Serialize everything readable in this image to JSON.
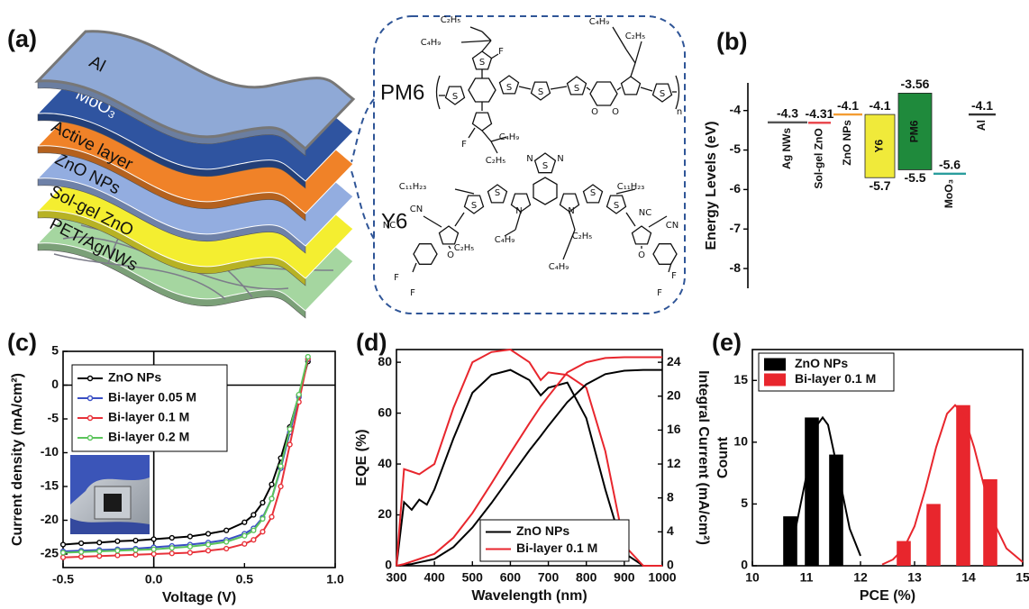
{
  "diagram": {
    "label": "(a)",
    "layers": [
      {
        "name": "Al",
        "color": "#8fa9d6"
      },
      {
        "name": "MoO₃",
        "color": "#2f54a0"
      },
      {
        "name": "Active layer",
        "color": "#f08228"
      },
      {
        "name": "ZnO NPs",
        "color": "#93ade0"
      },
      {
        "name": "Sol-gel ZnO",
        "color": "#f4ee30"
      },
      {
        "name": "PET/AgNWs",
        "color": "#a5d6a0"
      }
    ],
    "molecules": [
      {
        "name": "PM6",
        "atoms": [
          "C₂H₅",
          "C₄H₉",
          "F",
          "S",
          "S",
          "S",
          "S",
          "C₄H₉",
          "C₂H₅",
          "O",
          "O",
          "S",
          "S",
          "n",
          "F",
          "C₄H₉",
          "C₂H₅"
        ]
      },
      {
        "name": "Y6",
        "atoms": [
          "S",
          "N",
          "N",
          "C₁₁H₂₃",
          "C₁₁H₂₃",
          "NC",
          "CN",
          "NC",
          "CN",
          "N",
          "N",
          "O",
          "O",
          "F",
          "F",
          "F",
          "F",
          "C₂H₅",
          "C₄H₉",
          "C₂H₅",
          "C₄H₉",
          "S",
          "S",
          "S",
          "S"
        ]
      }
    ]
  },
  "chart_data": [
    {
      "type": "energy-level",
      "label": "(b)",
      "ylabel": "Energy Levels (eV)",
      "ylim": [
        -8.5,
        -3.3
      ],
      "yticks": [
        -8,
        -7,
        -6,
        -5,
        -4
      ],
      "series": [
        {
          "name": "Ag NWs",
          "color": "#555555",
          "values": [
            -4.3
          ]
        },
        {
          "name": "Sol-gel ZnO",
          "color": "#e8434a",
          "values": [
            -4.31
          ]
        },
        {
          "name": "ZnO NPs",
          "color": "#f39c33",
          "values": [
            -4.1
          ]
        },
        {
          "name": "Y6",
          "color": "#f0ea3a",
          "values": [
            -4.1,
            -5.7
          ]
        },
        {
          "name": "PM6",
          "color": "#1f8a3c",
          "values": [
            -3.56,
            -5.5
          ]
        },
        {
          "name": "MoO₃",
          "color": "#2a9d9d",
          "values": [
            -5.6
          ]
        },
        {
          "name": "Al",
          "color": "#333333",
          "values": [
            -4.1
          ]
        }
      ]
    },
    {
      "type": "line",
      "label": "(c)",
      "xlabel": "Voltage (V)",
      "ylabel": "Current density (mA/cm²)",
      "markers": true,
      "xlim": [
        -0.5,
        1.0
      ],
      "xticks": [
        -0.5,
        {
          "value": 0,
          "label": "0.0"
        },
        0.5,
        {
          "value": 1,
          "label": "1.0"
        }
      ],
      "ylim": [
        -27,
        5
      ],
      "yticks": [
        -25,
        -20,
        -15,
        -10,
        -5,
        0,
        5
      ],
      "x": [
        -0.5,
        -0.4,
        -0.3,
        -0.2,
        -0.1,
        0,
        0.1,
        0.2,
        0.3,
        0.4,
        0.5,
        0.55,
        0.6,
        0.65,
        0.7,
        0.75,
        0.8,
        0.85
      ],
      "series": [
        {
          "name": "ZnO NPs",
          "color": "#000000",
          "values": [
            -23.6,
            -23.4,
            -23.3,
            -23.1,
            -23.0,
            -22.8,
            -22.6,
            -22.4,
            -22.0,
            -21.5,
            -20.3,
            -19.2,
            -17.4,
            -14.7,
            -10.8,
            -6.2,
            -1.5,
            3.5
          ]
        },
        {
          "name": "Bi-layer 0.05 M",
          "color": "#3a4fc4",
          "values": [
            -24.6,
            -24.5,
            -24.4,
            -24.3,
            -24.2,
            -24.0,
            -23.8,
            -23.6,
            -23.3,
            -22.9,
            -22.0,
            -21.2,
            -19.6,
            -16.8,
            -12.3,
            -7.0,
            -1.8,
            3.8
          ]
        },
        {
          "name": "Bi-layer 0.1 M",
          "color": "#e8323a",
          "values": [
            -25.5,
            -25.4,
            -25.3,
            -25.2,
            -25.1,
            -25.0,
            -24.9,
            -24.8,
            -24.5,
            -24.2,
            -23.5,
            -22.9,
            -21.7,
            -19.5,
            -15.0,
            -8.8,
            -2.5,
            3.9
          ]
        },
        {
          "name": "Bi-layer 0.2 M",
          "color": "#5cc45c",
          "values": [
            -24.8,
            -24.7,
            -24.6,
            -24.5,
            -24.4,
            -24.3,
            -24.1,
            -23.9,
            -23.6,
            -23.2,
            -22.3,
            -21.5,
            -19.8,
            -16.8,
            -12.0,
            -6.5,
            -1.4,
            4.2
          ]
        }
      ]
    },
    {
      "type": "line",
      "label": "(d)",
      "xlabel": "Wavelength (nm)",
      "ylabel": "EQE (%)",
      "y2label": "Integral Current (mA/cm²)",
      "xlim": [
        300,
        1000
      ],
      "xticks": [
        300,
        400,
        500,
        600,
        700,
        800,
        900,
        1000
      ],
      "ylim": [
        0,
        85
      ],
      "yticks": [
        0,
        20,
        40,
        60,
        80
      ],
      "y2lim": [
        0,
        25.5
      ],
      "y2ticks": [
        0,
        4,
        8,
        12,
        16,
        20,
        24
      ],
      "x": [
        300,
        320,
        340,
        360,
        380,
        400,
        450,
        500,
        550,
        600,
        650,
        680,
        700,
        750,
        800,
        850,
        900,
        950,
        1000
      ],
      "series": [
        {
          "name": "ZnO NPs",
          "color": "#000000",
          "values": [
            0,
            25,
            22,
            26,
            24,
            30,
            50,
            68,
            75,
            77,
            73,
            67,
            70,
            72,
            58,
            30,
            5,
            0,
            0
          ]
        },
        {
          "name": "Bi-layer 0.1 M",
          "color": "#e8262d",
          "values": [
            0,
            38,
            37,
            36,
            38,
            40,
            62,
            80,
            84,
            85,
            80,
            73,
            76,
            75,
            70,
            45,
            8,
            0,
            0
          ]
        },
        {
          "color": "#000000",
          "axis": "y2",
          "values": [
            0,
            0.1,
            0.2,
            0.4,
            0.6,
            0.8,
            2.2,
            4.5,
            7.4,
            10.5,
            13.6,
            15.3,
            16.5,
            19.3,
            21.4,
            22.6,
            23.0,
            23.1,
            23.1
          ]
        },
        {
          "color": "#e8262d",
          "axis": "y2",
          "values": [
            0,
            0.2,
            0.5,
            0.8,
            1.1,
            1.4,
            3.3,
            6.2,
            9.7,
            13.3,
            16.8,
            18.8,
            20.0,
            22.8,
            24.0,
            24.5,
            24.6,
            24.6,
            24.6
          ]
        }
      ]
    },
    {
      "type": "bar",
      "label": "(e)",
      "xlabel": "PCE (%)",
      "ylabel": "Count",
      "xlim": [
        10,
        15
      ],
      "xticks": [
        10,
        11,
        12,
        13,
        14,
        15
      ],
      "ylim": [
        0,
        17.5
      ],
      "yticks": [
        0,
        5,
        10,
        15
      ],
      "series": [
        {
          "name": "ZnO NPs",
          "color": "#000000",
          "x": [
            10.7,
            11.1,
            11.55
          ],
          "values": [
            4,
            12,
            9
          ]
        },
        {
          "name": "Bi-layer 0.1 M",
          "color": "#e8262d",
          "x": [
            12.8,
            13.35,
            13.9,
            14.4
          ],
          "values": [
            2,
            5,
            13,
            7
          ]
        }
      ],
      "fits": [
        {
          "color": "#000000",
          "x": [
            10.6,
            10.8,
            11.0,
            11.2,
            11.3,
            11.4,
            11.6,
            11.8,
            12.0
          ],
          "values": [
            0.8,
            3.0,
            7.3,
            11.4,
            12,
            11.4,
            7.3,
            3.0,
            0.8
          ]
        },
        {
          "color": "#e8262d",
          "x": [
            12.4,
            12.6,
            12.8,
            13.0,
            13.2,
            13.4,
            13.6,
            13.75,
            13.9,
            14.1,
            14.3,
            14.5,
            14.7,
            15.0
          ],
          "values": [
            0.1,
            0.5,
            1.4,
            3.2,
            6.2,
            9.6,
            12.3,
            13,
            12.3,
            9.6,
            6.2,
            3.2,
            1.4,
            0.3
          ]
        }
      ]
    }
  ]
}
